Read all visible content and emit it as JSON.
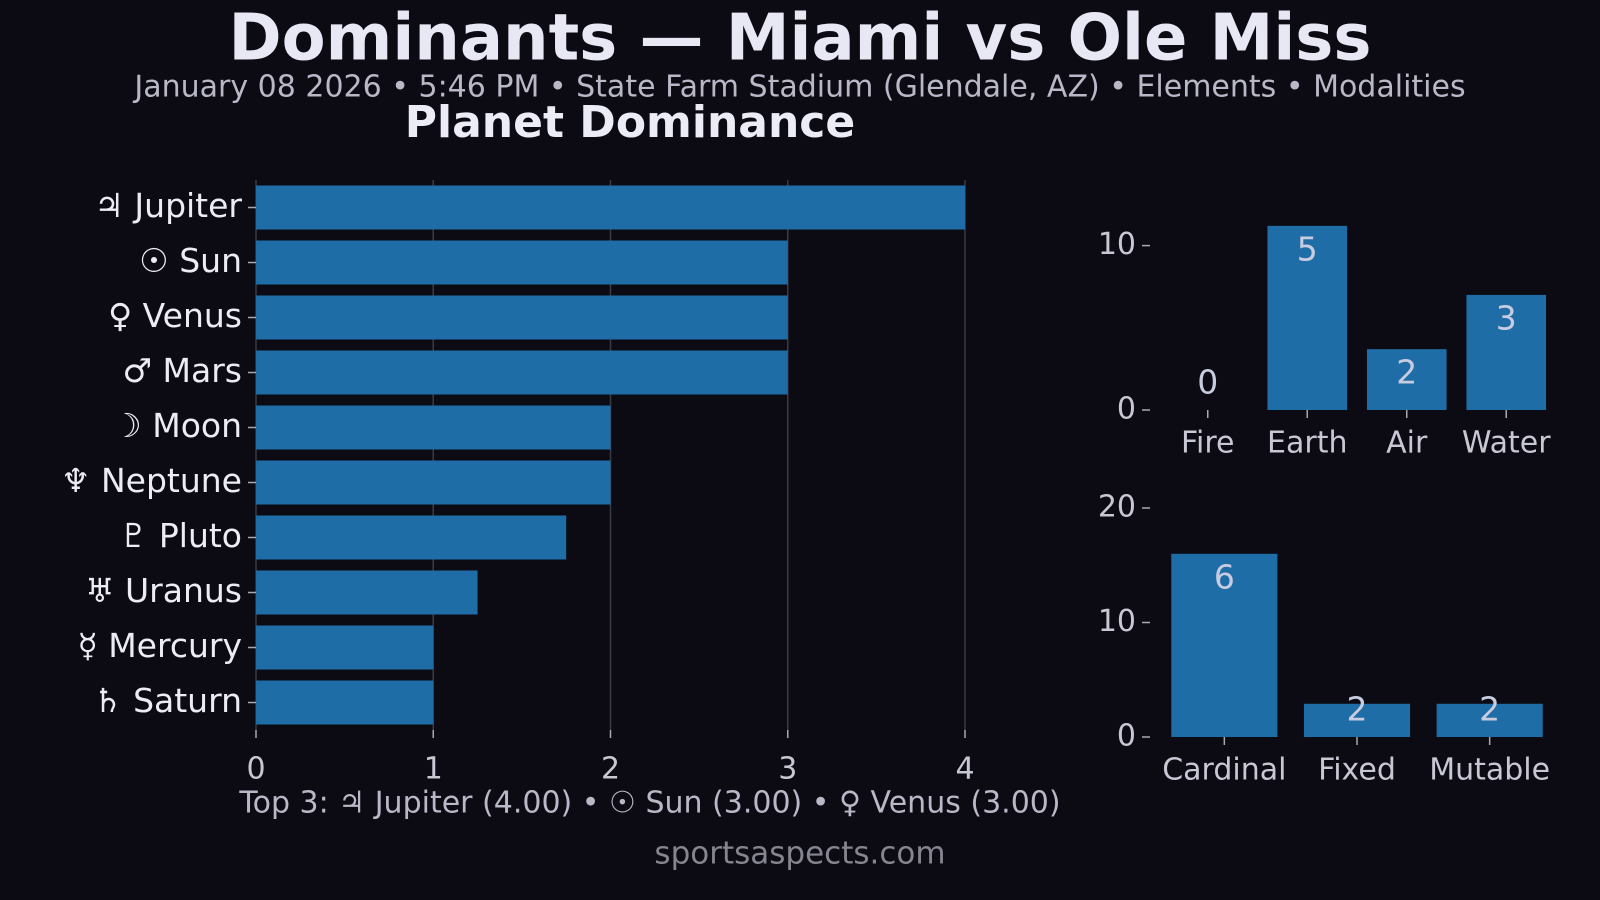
{
  "title": "Dominants — Miami vs Ole Miss",
  "subtitle": "January 08 2026 • 5:46 PM • State Farm Stadium (Glendale, AZ) • Elements • Modalities",
  "source": "sportsaspects.com",
  "chart_data": [
    {
      "type": "barh",
      "title": "Planet Dominance",
      "categories": [
        "♃ Jupiter",
        "☉ Sun",
        "♀ Venus",
        "♂ Mars",
        "☽ Moon",
        "♆ Neptune",
        "♇ Pluto",
        "♅ Uranus",
        "☿ Mercury",
        "♄ Saturn"
      ],
      "values": [
        4,
        3,
        3,
        3,
        2,
        2,
        1.75,
        1.25,
        1,
        1
      ],
      "color": "#1f6da6",
      "xlim": [
        0,
        4
      ],
      "xticks": [
        0,
        1,
        2,
        3,
        4
      ],
      "grid": true,
      "annotation": "Top 3: ♃ Jupiter (4.00) • ☉ Sun (3.00) • ♀ Venus (3.00)"
    },
    {
      "type": "bar",
      "categories": [
        "Fire",
        "Earth",
        "Air",
        "Water"
      ],
      "values": [
        0,
        11.2,
        3.7,
        7.0
      ],
      "counts": [
        0,
        5,
        2,
        3
      ],
      "color": "#1f6da6",
      "ylim": [
        0,
        11.8
      ],
      "yticks": [
        0,
        10
      ],
      "grid": false
    },
    {
      "type": "bar",
      "categories": [
        "Cardinal",
        "Fixed",
        "Mutable"
      ],
      "values": [
        16.0,
        2.9,
        2.9
      ],
      "counts": [
        6,
        2,
        2
      ],
      "color": "#1f6da6",
      "ylim": [
        0,
        20
      ],
      "yticks": [
        0,
        10,
        20
      ],
      "grid": false
    }
  ]
}
